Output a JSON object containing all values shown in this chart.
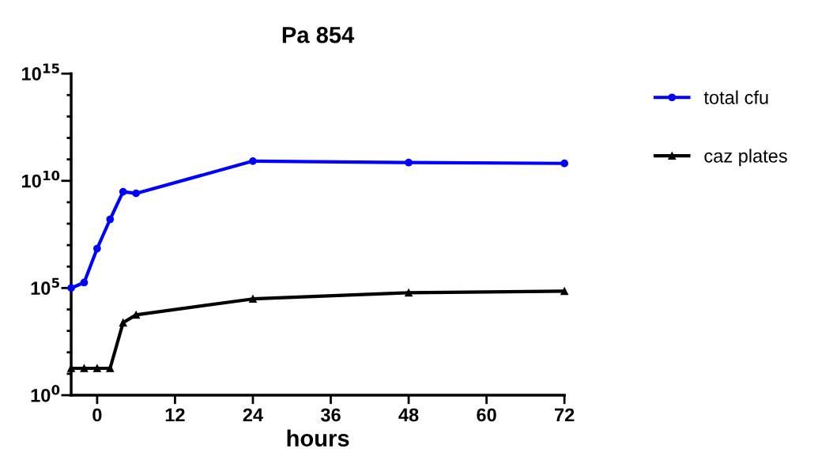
{
  "chart_data": {
    "type": "line",
    "title": "Pa 854",
    "xlabel": "hours",
    "x": [
      -4,
      -2,
      0,
      2,
      4,
      6,
      24,
      48,
      72
    ],
    "series": [
      {
        "name": "total cfu",
        "color": "#0000ff",
        "marker": "circle",
        "values": [
          100000,
          180000,
          6900000,
          160000000,
          3100000000,
          2600000000,
          83000000000,
          71000000000,
          65000000000
        ]
      },
      {
        "name": "caz plates",
        "color": "#000000",
        "marker": "triangle",
        "values": [
          18,
          18,
          18,
          18,
          2400,
          5600,
          31000,
          60000,
          71000
        ]
      }
    ],
    "log": "y",
    "xlim": [
      -4,
      72
    ],
    "xticks": [
      0,
      12,
      24,
      36,
      48,
      60,
      72
    ],
    "ylim": [
      1,
      1000000000000000
    ],
    "yticks": [
      {
        "value": 1,
        "label": "10$^{0}$"
      },
      {
        "value": 10,
        "label": null
      },
      {
        "value": 100,
        "label": null
      },
      {
        "value": 1000,
        "label": null
      },
      {
        "value": 10000,
        "label": null
      },
      {
        "value": 100000,
        "label": "10$^{5}$"
      },
      {
        "value": 1000000,
        "label": null
      },
      {
        "value": 10000000,
        "label": null
      },
      {
        "value": 100000000,
        "label": null
      },
      {
        "value": 1000000000,
        "label": null
      },
      {
        "value": 10000000000,
        "label": "10$^{10}$"
      },
      {
        "value": 100000000000,
        "label": null
      },
      {
        "value": 1000000000000,
        "label": null
      },
      {
        "value": 10000000000000,
        "label": null
      },
      {
        "value": 100000000000000,
        "label": null
      },
      {
        "value": 1000000000000000,
        "label": "10$^{15}$"
      }
    ],
    "grid": false,
    "legend": "right",
    "line_style": "solid"
  }
}
